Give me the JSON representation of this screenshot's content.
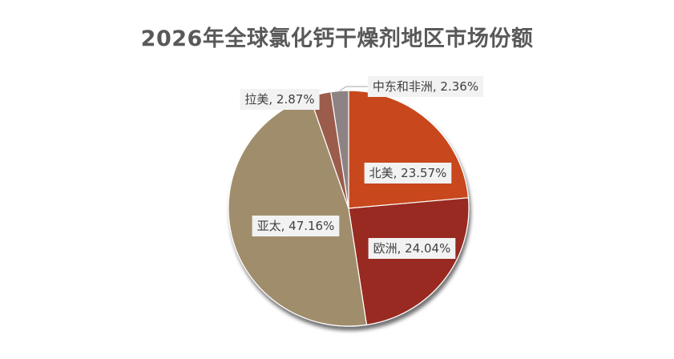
{
  "chart_data": {
    "type": "pie",
    "title": "2026年全球氯化钙干燥剂地区市场份额",
    "categories": [
      "北美",
      "欧洲",
      "亚太",
      "拉美",
      "中东和非洲"
    ],
    "values": [
      23.57,
      24.04,
      47.16,
      2.87,
      2.36
    ],
    "data_labels": [
      "北美, 23.57%",
      "欧洲, 24.04%",
      "亚太, 47.16%",
      "拉美, 2.87%",
      "中东和非洲, 2.36%"
    ],
    "colors": [
      "#c8471b",
      "#982b20",
      "#a08d6c",
      "#9c5b4c",
      "#8e8384"
    ],
    "legend": "none"
  }
}
